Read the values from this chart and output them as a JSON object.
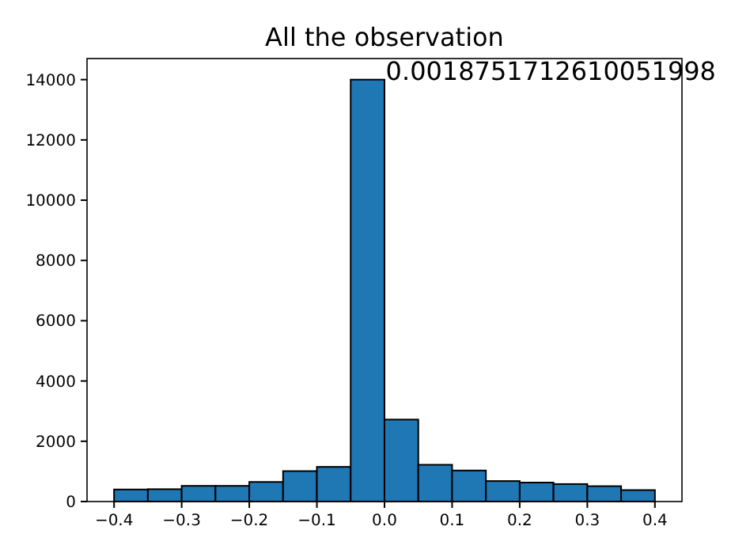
{
  "chart_data": {
    "type": "histogram",
    "title": "All the observation",
    "bins": [
      -0.4,
      -0.35,
      -0.3,
      -0.25,
      -0.2,
      -0.15,
      -0.1,
      -0.05,
      0,
      0.05,
      0.1,
      0.15,
      0.2,
      0.25,
      0.3,
      0.35,
      0.4
    ],
    "values": [
      400,
      410,
      520,
      520,
      650,
      1010,
      1150,
      14000,
      2720,
      1220,
      1030,
      680,
      630,
      580,
      510,
      380
    ],
    "color": "#1f77b4",
    "xlim": [
      -0.44,
      0.44
    ],
    "xticks": [
      {
        "value": -0.4,
        "label": "−0.4"
      },
      {
        "value": -0.3,
        "label": "−0.3"
      },
      {
        "value": -0.2,
        "label": "−0.2"
      },
      {
        "value": -0.1,
        "label": "−0.1"
      },
      {
        "value": 0,
        "label": "0.0"
      },
      {
        "value": 0.1,
        "label": "0.1"
      },
      {
        "value": 0.2,
        "label": "0.2"
      },
      {
        "value": 0.3,
        "label": "0.3"
      },
      {
        "value": 0.4,
        "label": "0.4"
      }
    ],
    "ylim": [
      0,
      14700
    ],
    "yticks": [
      0,
      2000,
      4000,
      6000,
      8000,
      10000,
      12000,
      14000
    ],
    "annotations": [
      {
        "text": "0.0018751712610051998",
        "x": 0.0019,
        "y": 14000
      }
    ]
  }
}
